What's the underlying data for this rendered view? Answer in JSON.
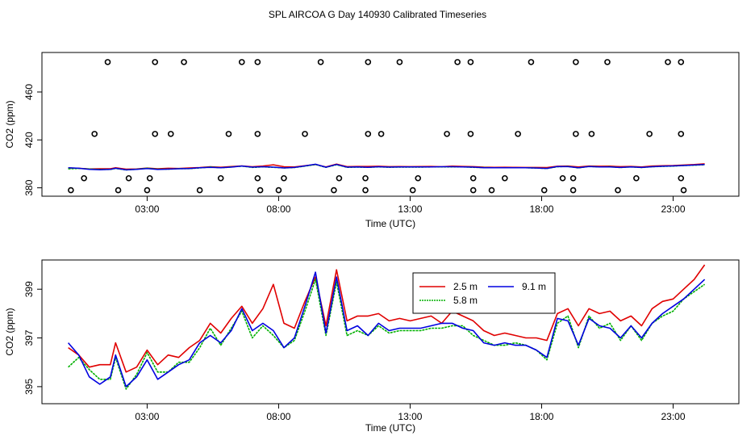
{
  "title": "SPL AIRCOA G  Day 140930  Calibrated Timeseries",
  "chart_data": [
    {
      "type": "scatter+line",
      "ylabel": "CO2 (ppm)",
      "xlabel": "Time (UTC)",
      "xlim": [
        -1.0,
        25.5
      ],
      "ylim": [
        373,
        493
      ],
      "xticks": [
        3,
        8,
        13,
        18,
        23
      ],
      "xtick_labels": [
        "03:00",
        "08:00",
        "13:00",
        "18:00",
        "23:00"
      ],
      "yticks": [
        380,
        420,
        460
      ],
      "ytick_labels": [
        "380",
        "420",
        "460"
      ],
      "scatter": {
        "name": "calibration points",
        "points": [
          [
            1.5,
            485
          ],
          [
            3.3,
            485
          ],
          [
            4.4,
            485
          ],
          [
            6.6,
            485
          ],
          [
            7.2,
            485
          ],
          [
            9.6,
            485
          ],
          [
            11.4,
            485
          ],
          [
            12.6,
            485
          ],
          [
            14.8,
            485
          ],
          [
            15.3,
            485
          ],
          [
            17.6,
            485
          ],
          [
            19.3,
            485
          ],
          [
            20.5,
            485
          ],
          [
            22.8,
            485
          ],
          [
            23.3,
            485
          ],
          [
            1.0,
            425
          ],
          [
            3.3,
            425
          ],
          [
            3.9,
            425
          ],
          [
            6.1,
            425
          ],
          [
            7.2,
            425
          ],
          [
            9.0,
            425
          ],
          [
            11.4,
            425
          ],
          [
            11.9,
            425
          ],
          [
            14.4,
            425
          ],
          [
            15.3,
            425
          ],
          [
            17.1,
            425
          ],
          [
            19.3,
            425
          ],
          [
            19.9,
            425
          ],
          [
            22.1,
            425
          ],
          [
            23.3,
            425
          ],
          [
            0.6,
            388
          ],
          [
            2.3,
            388
          ],
          [
            3.1,
            388
          ],
          [
            5.8,
            388
          ],
          [
            7.2,
            388
          ],
          [
            8.2,
            388
          ],
          [
            10.3,
            388
          ],
          [
            11.3,
            388
          ],
          [
            13.3,
            388
          ],
          [
            15.4,
            388
          ],
          [
            16.6,
            388
          ],
          [
            18.8,
            388
          ],
          [
            19.2,
            388
          ],
          [
            21.6,
            388
          ],
          [
            23.3,
            388
          ],
          [
            0.1,
            378
          ],
          [
            1.9,
            378
          ],
          [
            3.0,
            378
          ],
          [
            5.0,
            378
          ],
          [
            7.3,
            378
          ],
          [
            8.0,
            378
          ],
          [
            10.1,
            378
          ],
          [
            11.3,
            378
          ],
          [
            13.1,
            378
          ],
          [
            15.4,
            378
          ],
          [
            16.1,
            378
          ],
          [
            18.1,
            378
          ],
          [
            19.2,
            378
          ],
          [
            20.9,
            378
          ],
          [
            23.4,
            378
          ]
        ]
      },
      "series_note": "Lines at approx 395-399 ppm (same series as lower panel, compressed scale)"
    },
    {
      "type": "line",
      "ylabel": "CO2 (ppm)",
      "xlabel": "Time (UTC)",
      "xlim": [
        -1.0,
        25.5
      ],
      "ylim": [
        394.3,
        400.2
      ],
      "xticks": [
        3,
        8,
        13,
        18,
        23
      ],
      "xtick_labels": [
        "03:00",
        "08:00",
        "13:00",
        "18:00",
        "23:00"
      ],
      "yticks": [
        395,
        397,
        399
      ],
      "ytick_labels": [
        "395",
        "397",
        "399"
      ],
      "legend": {
        "position": "top-center",
        "entries": [
          {
            "label": "2.5 m",
            "color": "#e00000"
          },
          {
            "label": "9.1 m",
            "color": "#0000e0"
          },
          {
            "label": "5.8 m",
            "color": "#00b000"
          }
        ]
      },
      "series": [
        {
          "name": "2.5 m",
          "color": "#e00000",
          "x": [
            0.0,
            0.4,
            0.8,
            1.2,
            1.6,
            1.8,
            2.2,
            2.6,
            3.0,
            3.4,
            3.8,
            4.2,
            4.6,
            5.0,
            5.4,
            5.8,
            6.2,
            6.6,
            7.0,
            7.4,
            7.8,
            8.2,
            8.6,
            9.0,
            9.4,
            9.8,
            10.2,
            10.6,
            11.0,
            11.4,
            11.8,
            12.2,
            12.6,
            13.0,
            13.4,
            13.8,
            14.2,
            14.6,
            15.0,
            15.4,
            15.8,
            16.2,
            16.6,
            17.0,
            17.4,
            17.8,
            18.2,
            18.6,
            19.0,
            19.4,
            19.8,
            20.2,
            20.6,
            21.0,
            21.4,
            21.8,
            22.2,
            22.6,
            23.0,
            23.4,
            23.8,
            24.2
          ],
          "values": [
            396.6,
            396.3,
            395.8,
            395.9,
            395.9,
            396.8,
            395.6,
            395.8,
            396.5,
            395.9,
            396.3,
            396.2,
            396.6,
            396.9,
            397.6,
            397.2,
            397.8,
            398.3,
            397.6,
            398.2,
            399.2,
            397.6,
            397.4,
            398.5,
            399.5,
            397.5,
            399.8,
            397.7,
            397.9,
            397.9,
            398.0,
            397.7,
            397.8,
            397.7,
            397.8,
            397.9,
            397.6,
            398.1,
            397.9,
            397.7,
            397.3,
            397.1,
            397.2,
            397.1,
            397.0,
            397.0,
            396.9,
            398.0,
            398.2,
            397.5,
            398.2,
            398.0,
            398.1,
            397.7,
            397.9,
            397.5,
            398.2,
            398.5,
            398.6,
            399.0,
            399.4,
            400.0
          ]
        },
        {
          "name": "5.8 m",
          "color": "#00b000",
          "x": [
            0.0,
            0.4,
            0.8,
            1.2,
            1.6,
            1.8,
            2.2,
            2.6,
            3.0,
            3.4,
            3.8,
            4.2,
            4.6,
            5.0,
            5.4,
            5.8,
            6.2,
            6.6,
            7.0,
            7.4,
            7.8,
            8.2,
            8.6,
            9.0,
            9.4,
            9.8,
            10.2,
            10.6,
            11.0,
            11.4,
            11.8,
            12.2,
            12.6,
            13.0,
            13.4,
            13.8,
            14.2,
            14.6,
            15.0,
            15.4,
            15.8,
            16.2,
            16.6,
            17.0,
            17.4,
            17.8,
            18.2,
            18.6,
            19.0,
            19.4,
            19.8,
            20.2,
            20.6,
            21.0,
            21.4,
            21.8,
            22.2,
            22.6,
            23.0,
            23.4,
            23.8,
            24.2
          ],
          "values": [
            395.8,
            396.2,
            395.7,
            395.3,
            395.3,
            396.2,
            394.9,
            395.5,
            396.4,
            395.6,
            395.6,
            396.0,
            396.0,
            396.6,
            397.4,
            396.7,
            397.4,
            398.1,
            397.0,
            397.5,
            397.1,
            396.6,
            396.9,
            398.1,
            399.4,
            397.1,
            399.3,
            397.1,
            397.3,
            397.1,
            397.5,
            397.2,
            397.3,
            397.3,
            397.3,
            397.4,
            397.4,
            397.5,
            397.5,
            397.1,
            396.9,
            396.7,
            396.7,
            396.8,
            396.7,
            396.5,
            396.1,
            397.6,
            397.9,
            396.6,
            397.9,
            397.4,
            397.6,
            396.9,
            397.5,
            396.9,
            397.6,
            397.9,
            398.1,
            398.6,
            398.9,
            399.2
          ]
        },
        {
          "name": "9.1 m",
          "color": "#0000e0",
          "x": [
            0.0,
            0.4,
            0.8,
            1.2,
            1.6,
            1.8,
            2.2,
            2.6,
            3.0,
            3.4,
            3.8,
            4.2,
            4.6,
            5.0,
            5.4,
            5.8,
            6.2,
            6.6,
            7.0,
            7.4,
            7.8,
            8.2,
            8.6,
            9.0,
            9.4,
            9.8,
            10.2,
            10.6,
            11.0,
            11.4,
            11.8,
            12.2,
            12.6,
            13.0,
            13.4,
            13.8,
            14.2,
            14.6,
            15.0,
            15.4,
            15.8,
            16.2,
            16.6,
            17.0,
            17.4,
            17.8,
            18.2,
            18.6,
            19.0,
            19.4,
            19.8,
            20.2,
            20.6,
            21.0,
            21.4,
            21.8,
            22.2,
            22.6,
            23.0,
            23.4,
            23.8,
            24.2
          ],
          "values": [
            396.8,
            396.3,
            395.4,
            395.1,
            395.4,
            396.3,
            395.0,
            395.4,
            396.1,
            395.3,
            395.6,
            395.9,
            396.1,
            396.8,
            397.1,
            396.8,
            397.3,
            398.2,
            397.3,
            397.6,
            397.3,
            396.6,
            397.0,
            398.3,
            399.7,
            397.2,
            399.5,
            397.3,
            397.5,
            397.1,
            397.6,
            397.3,
            397.4,
            397.4,
            397.4,
            397.5,
            397.6,
            397.6,
            397.4,
            397.3,
            396.8,
            396.7,
            396.8,
            396.7,
            396.7,
            396.5,
            396.2,
            397.8,
            397.7,
            396.7,
            397.8,
            397.5,
            397.4,
            397.0,
            397.5,
            397.0,
            397.6,
            398.0,
            398.3,
            398.6,
            399.0,
            399.4
          ]
        }
      ]
    }
  ]
}
